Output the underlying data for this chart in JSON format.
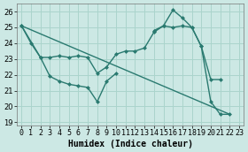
{
  "background_color": "#cce8e4",
  "grid_color": "#aad4cc",
  "line_color": "#2a7a70",
  "line_width": 1.0,
  "marker": "D",
  "marker_size": 2.5,
  "xlabel": "Humidex (Indice chaleur)",
  "xlabel_fontsize": 7,
  "tick_fontsize": 6,
  "ylim": [
    18.8,
    26.5
  ],
  "xlim": [
    -0.5,
    23.5
  ],
  "yticks": [
    19,
    20,
    21,
    22,
    23,
    24,
    25,
    26
  ],
  "xticks": [
    0,
    1,
    2,
    3,
    4,
    5,
    6,
    7,
    8,
    9,
    10,
    11,
    12,
    13,
    14,
    15,
    16,
    17,
    18,
    19,
    20,
    21,
    22,
    23
  ],
  "line1_x": [
    0,
    1,
    2,
    3,
    4,
    5,
    6,
    7,
    8,
    9,
    10,
    11,
    12,
    13,
    14,
    15,
    16,
    17,
    18,
    19,
    20,
    21
  ],
  "line1_y": [
    25.1,
    24.0,
    23.1,
    23.1,
    23.2,
    23.1,
    23.2,
    23.1,
    22.1,
    22.5,
    23.3,
    23.5,
    23.5,
    23.7,
    24.7,
    25.1,
    25.0,
    25.1,
    25.0,
    23.8,
    21.7,
    21.7
  ],
  "line2_x": [
    0,
    2,
    3,
    4,
    5,
    6,
    7,
    8,
    9,
    10
  ],
  "line2_y": [
    25.1,
    23.1,
    21.9,
    21.6,
    21.4,
    21.3,
    21.2,
    20.3,
    21.6,
    22.1
  ],
  "line3_x": [
    0,
    22
  ],
  "line3_y": [
    25.1,
    19.5
  ],
  "line4_x": [
    14,
    15,
    16,
    17,
    18,
    19,
    20,
    21,
    22
  ],
  "line4_y": [
    24.8,
    25.1,
    26.1,
    25.6,
    25.0,
    23.8,
    20.3,
    19.5,
    19.5
  ]
}
